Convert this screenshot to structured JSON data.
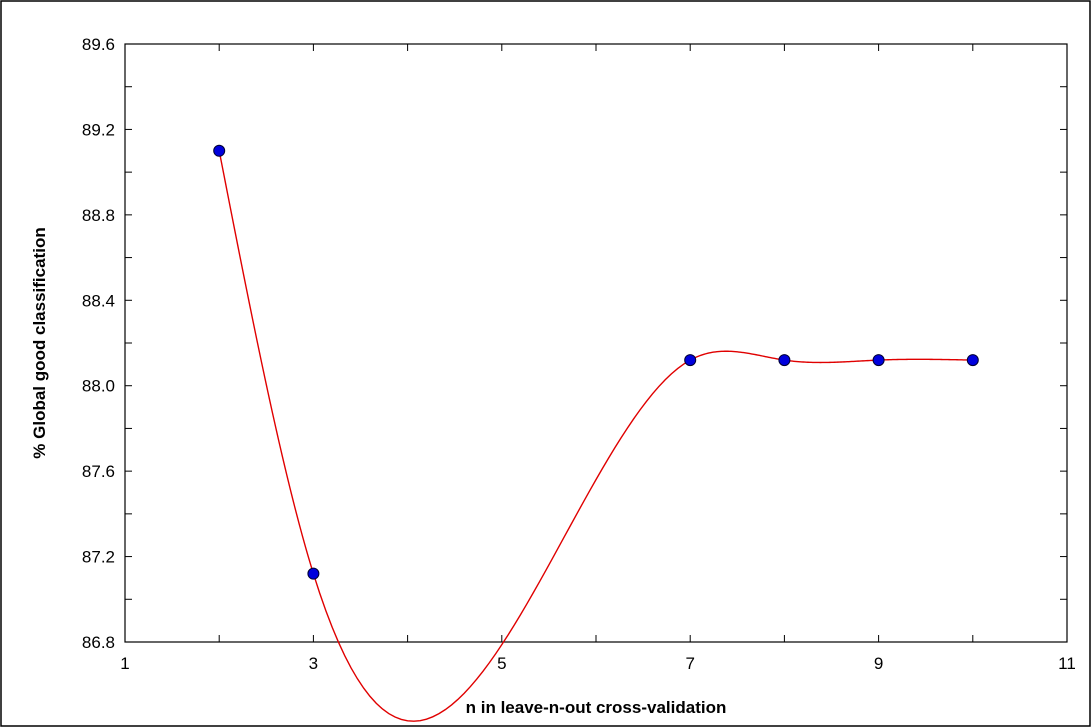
{
  "chart_data": {
    "type": "scatter",
    "xlabel": "n in leave-n-out cross-validation",
    "ylabel": "% Global good classification",
    "xlim": [
      1,
      11
    ],
    "ylim": [
      86.8,
      89.6
    ],
    "xticks": [
      "1",
      "3",
      "5",
      "7",
      "9",
      "11"
    ],
    "yticks": [
      "86.8",
      "87.2",
      "87.6",
      "88.0",
      "88.4",
      "88.8",
      "89.2",
      "89.6"
    ],
    "x_tick_values": [
      1,
      3,
      5,
      7,
      9,
      11
    ],
    "y_tick_values": [
      86.8,
      87.2,
      87.6,
      88.0,
      88.4,
      88.8,
      89.2,
      89.6
    ],
    "x_minor_step": 1,
    "y_minor_step": 0.2,
    "grid": false,
    "smooth_curve": true,
    "series": [
      {
        "x": [
          2,
          3,
          7,
          8,
          9,
          10
        ],
        "y": [
          89.1,
          87.12,
          88.12,
          88.12,
          88.12,
          88.12
        ]
      }
    ],
    "colors": {
      "marker": "#0000dd",
      "marker_edge": "#000033",
      "curve": "#e00000",
      "axes": "#000000"
    }
  }
}
